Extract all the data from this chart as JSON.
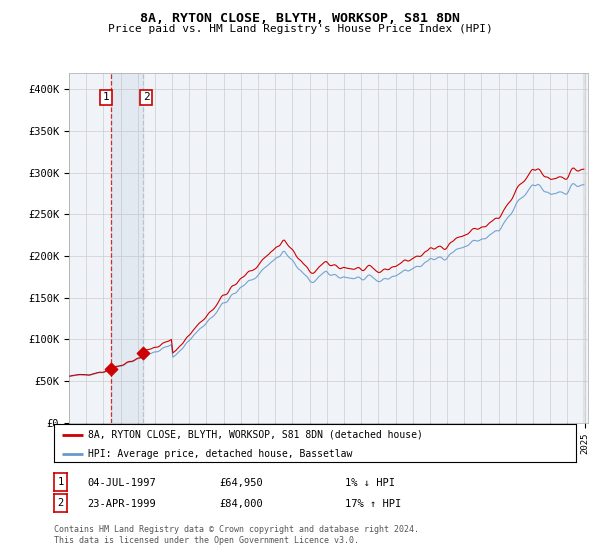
{
  "title1": "8A, RYTON CLOSE, BLYTH, WORKSOP, S81 8DN",
  "title2": "Price paid vs. HM Land Registry's House Price Index (HPI)",
  "ylabel_ticks": [
    "£0",
    "£50K",
    "£100K",
    "£150K",
    "£200K",
    "£250K",
    "£300K",
    "£350K",
    "£400K"
  ],
  "ytick_vals": [
    0,
    50000,
    100000,
    150000,
    200000,
    250000,
    300000,
    350000,
    400000
  ],
  "ylim": [
    0,
    420000
  ],
  "sale1_date": "04-JUL-1997",
  "sale1_price": 64950,
  "sale1_hpi": "1% ↓ HPI",
  "sale2_date": "23-APR-1999",
  "sale2_price": 84000,
  "sale2_hpi": "17% ↑ HPI",
  "legend_label1": "8A, RYTON CLOSE, BLYTH, WORKSOP, S81 8DN (detached house)",
  "legend_label2": "HPI: Average price, detached house, Bassetlaw",
  "footer": "Contains HM Land Registry data © Crown copyright and database right 2024.\nThis data is licensed under the Open Government Licence v3.0.",
  "line_color_red": "#cc0000",
  "line_color_blue": "#6699cc",
  "bg_color": "#f0f4f8",
  "grid_color": "#cccccc",
  "sale_marker_color": "#cc0000",
  "vline1_color": "#cc0000",
  "vline2_color": "#aabbcc"
}
